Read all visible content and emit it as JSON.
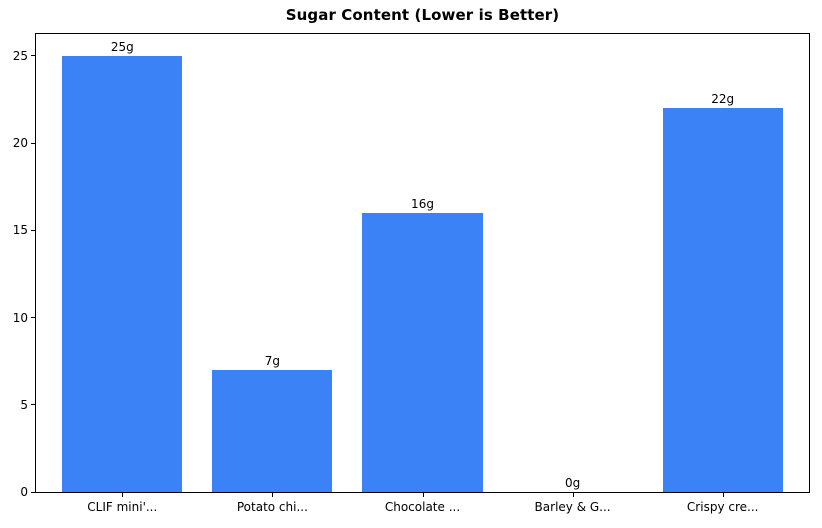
{
  "chart_data": {
    "type": "bar",
    "title": "Sugar Content (Lower is Better)",
    "categories": [
      "CLIF mini'...",
      "Potato chi...",
      "Chocolate ...",
      "Barley & G...",
      "Crispy cre..."
    ],
    "values": [
      25,
      7,
      16,
      0,
      22
    ],
    "bar_labels": [
      "25g",
      "7g",
      "16g",
      "0g",
      "22g"
    ],
    "yticks": [
      0,
      5,
      10,
      15,
      20,
      25
    ],
    "ylim": [
      0,
      26.25
    ],
    "xlabel": "",
    "ylabel": "",
    "grid": false,
    "legend_position": "none",
    "bar_color": "#3b82f6",
    "axis_color": "#000000",
    "background_color": "#ffffff"
  }
}
